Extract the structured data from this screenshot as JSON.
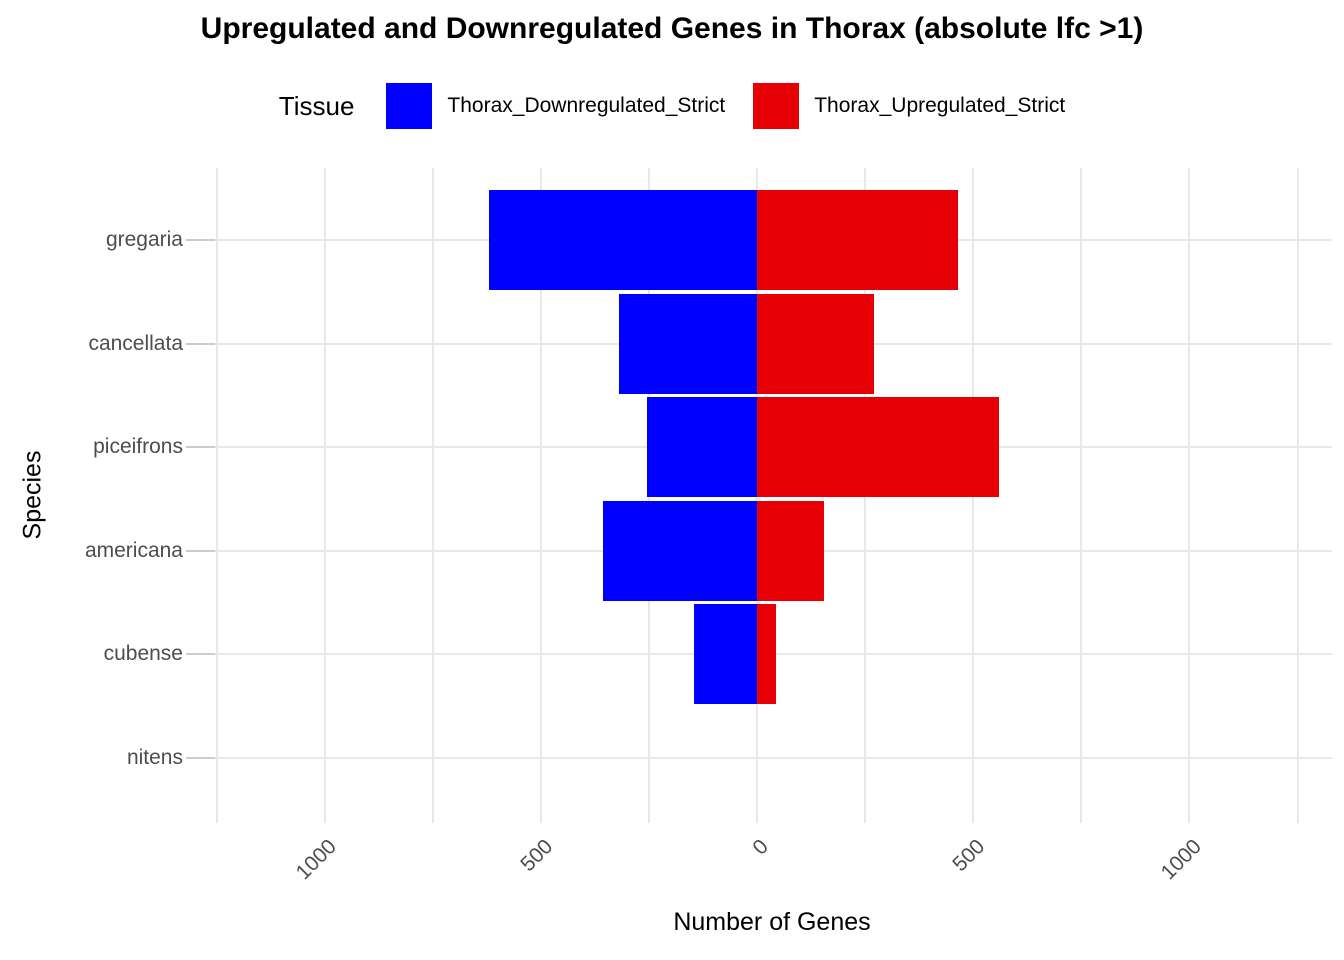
{
  "title": "Upregulated and Downregulated Genes in Thorax (absolute lfc >1)",
  "legend": {
    "title": "Tissue",
    "items": [
      {
        "label": "Thorax_Downregulated_Strict",
        "color": "#0000FF",
        "icon": "legend-swatch-blue"
      },
      {
        "label": "Thorax_Upregulated_Strict",
        "color": "#E60005",
        "icon": "legend-swatch-red"
      }
    ]
  },
  "chart_data": {
    "type": "bar",
    "orientation": "horizontal-diverging",
    "title": "Upregulated and Downregulated Genes in Thorax (absolute lfc >1)",
    "xlabel": "Number of Genes",
    "ylabel": "Species",
    "categories": [
      "gregaria",
      "cancellata",
      "piceifrons",
      "americana",
      "cubense",
      "nitens"
    ],
    "series": [
      {
        "name": "Thorax_Downregulated_Strict",
        "direction": "left",
        "color": "#0000FF",
        "values": [
          620,
          320,
          255,
          355,
          145,
          0
        ]
      },
      {
        "name": "Thorax_Upregulated_Strict",
        "direction": "right",
        "color": "#E60005",
        "values": [
          465,
          270,
          560,
          155,
          45,
          0
        ]
      }
    ],
    "x_ticks": [
      {
        "value": -1000,
        "label": "1000"
      },
      {
        "value": -500,
        "label": "500"
      },
      {
        "value": 0,
        "label": "0"
      },
      {
        "value": 500,
        "label": "500"
      },
      {
        "value": 1000,
        "label": "1000"
      }
    ],
    "xlim": [
      -1250,
      1250
    ],
    "gridline_step": 250,
    "grid": true,
    "legend_position": "top",
    "colors": {
      "grid": "#E8E8E8",
      "axis_text": "#4D4D4D",
      "axis_title": "#000000",
      "tick": "#CCCCCC"
    }
  }
}
